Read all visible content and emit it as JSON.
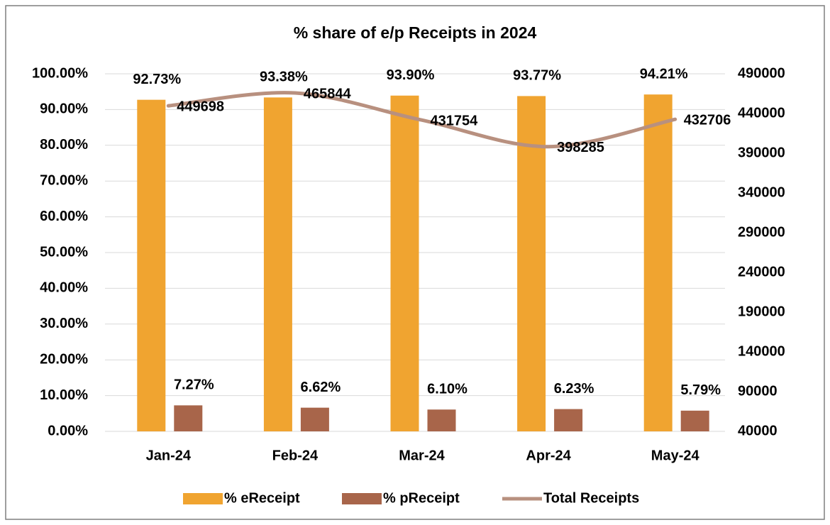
{
  "chart_data": {
    "type": "bar",
    "title": "% share of e/p Receipts in 2024",
    "categories": [
      "Jan-24",
      "Feb-24",
      "Mar-24",
      "Apr-24",
      "May-24"
    ],
    "series": [
      {
        "name": "% eReceipt",
        "color": "#f0a430",
        "values": [
          92.73,
          93.38,
          93.9,
          93.77,
          94.21
        ],
        "value_labels": [
          "92.73%",
          "93.38%",
          "93.90%",
          "93.77%",
          "94.21%"
        ]
      },
      {
        "name": "% pReceipt",
        "color": "#a8654a",
        "values": [
          7.27,
          6.62,
          6.1,
          6.23,
          5.79
        ],
        "value_labels": [
          "7.27%",
          "6.62%",
          "6.10%",
          "6.23%",
          "5.79%"
        ]
      },
      {
        "name": "Total Receipts",
        "color": "#b8907f",
        "type": "line",
        "axis": "y2",
        "values": [
          449698,
          465844,
          431754,
          398285,
          432706
        ]
      }
    ],
    "ylim": [
      0,
      100
    ],
    "yticks": [
      {
        "value": 0,
        "label": "0.00%"
      },
      {
        "value": 10,
        "label": "10.00%"
      },
      {
        "value": 20,
        "label": "20.00%"
      },
      {
        "value": 30,
        "label": "30.00%"
      },
      {
        "value": 40,
        "label": "40.00%"
      },
      {
        "value": 50,
        "label": "50.00%"
      },
      {
        "value": 60,
        "label": "60.00%"
      },
      {
        "value": 70,
        "label": "70.00%"
      },
      {
        "value": 80,
        "label": "80.00%"
      },
      {
        "value": 90,
        "label": "90.00%"
      },
      {
        "value": 100,
        "label": "100.00%"
      }
    ],
    "y2lim": [
      40000,
      490000
    ],
    "y2ticks": [
      40000,
      90000,
      140000,
      190000,
      240000,
      290000,
      340000,
      390000,
      440000,
      490000
    ],
    "grid": true,
    "legend": "bottom"
  }
}
